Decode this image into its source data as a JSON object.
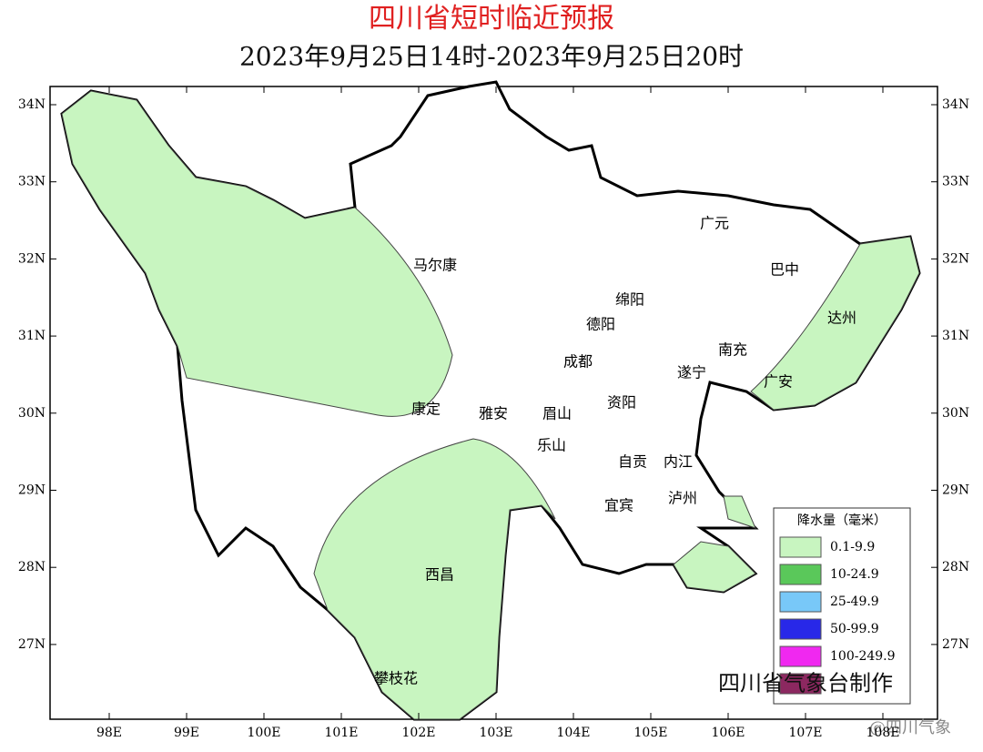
{
  "header": {
    "title": "四川省短时临近预报",
    "subtitle": "2023年9月25日14时-2023年9月25日20时"
  },
  "lon_ticks": [
    {
      "value": 98,
      "label": "98E"
    },
    {
      "value": 99,
      "label": "99E"
    },
    {
      "value": 100,
      "label": "100E"
    },
    {
      "value": 101,
      "label": "101E"
    },
    {
      "value": 102,
      "label": "102E"
    },
    {
      "value": 103,
      "label": "103E"
    },
    {
      "value": 104,
      "label": "104E"
    },
    {
      "value": 105,
      "label": "105E"
    },
    {
      "value": 106,
      "label": "106E"
    },
    {
      "value": 107,
      "label": "107E"
    },
    {
      "value": 108,
      "label": "108E"
    }
  ],
  "lat_ticks": [
    {
      "value": 34,
      "label": "34N"
    },
    {
      "value": 33,
      "label": "33N"
    },
    {
      "value": 32,
      "label": "32N"
    },
    {
      "value": 31,
      "label": "31N"
    },
    {
      "value": 30,
      "label": "30N"
    },
    {
      "value": 29,
      "label": "29N"
    },
    {
      "value": 28,
      "label": "28N"
    },
    {
      "value": 27,
      "label": "27N"
    }
  ],
  "cities": [
    "广元",
    "巴中",
    "马尔康",
    "绵阳",
    "达州",
    "德阳",
    "南充",
    "成都",
    "遂宁",
    "广安",
    "康定",
    "雅安",
    "眉山",
    "资阳",
    "乐山",
    "自贡",
    "内江",
    "宜宾",
    "泸州",
    "西昌",
    "攀枝花"
  ],
  "legend": {
    "title": "降水量（毫米）",
    "items": [
      {
        "label": "0.1-9.9",
        "color": "#c8f5c0"
      },
      {
        "label": "10-24.9",
        "color": "#5ac85a"
      },
      {
        "label": "25-49.9",
        "color": "#78c8f8"
      },
      {
        "label": "50-99.9",
        "color": "#2828e8"
      },
      {
        "label": "100-249.9",
        "color": "#f028f0"
      },
      {
        "label": "",
        "color": "#8c2860"
      }
    ]
  },
  "credit": "四川省气象台制作",
  "watermark": "@四川气象"
}
